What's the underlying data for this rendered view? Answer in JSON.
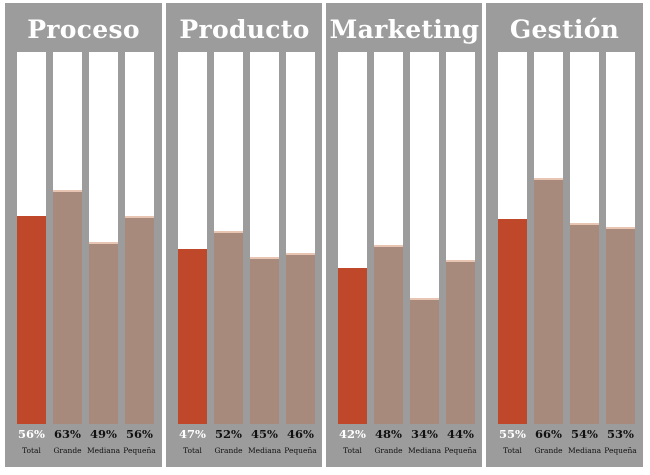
{
  "chart_data": {
    "type": "bar",
    "ylim": [
      0,
      100
    ],
    "categories": [
      "Total",
      "Grande",
      "Mediana",
      "Pequeña"
    ],
    "panels": [
      {
        "title": "Proceso",
        "values": [
          56,
          63,
          49,
          56
        ],
        "labels": [
          "56%",
          "63%",
          "49%",
          "56%"
        ]
      },
      {
        "title": "Producto",
        "values": [
          47,
          52,
          45,
          46
        ],
        "labels": [
          "47%",
          "52%",
          "45%",
          "46%"
        ]
      },
      {
        "title": "Marketing",
        "values": [
          42,
          48,
          34,
          44
        ],
        "labels": [
          "42%",
          "48%",
          "34%",
          "44%"
        ]
      },
      {
        "title": "Gestión",
        "values": [
          55,
          66,
          54,
          53
        ],
        "labels": [
          "55%",
          "66%",
          "54%",
          "53%"
        ]
      }
    ],
    "colors": {
      "total": "#c0482a",
      "segment": "#a88a7c",
      "track": "#ffffff",
      "panel": "#9c9c9c"
    }
  }
}
